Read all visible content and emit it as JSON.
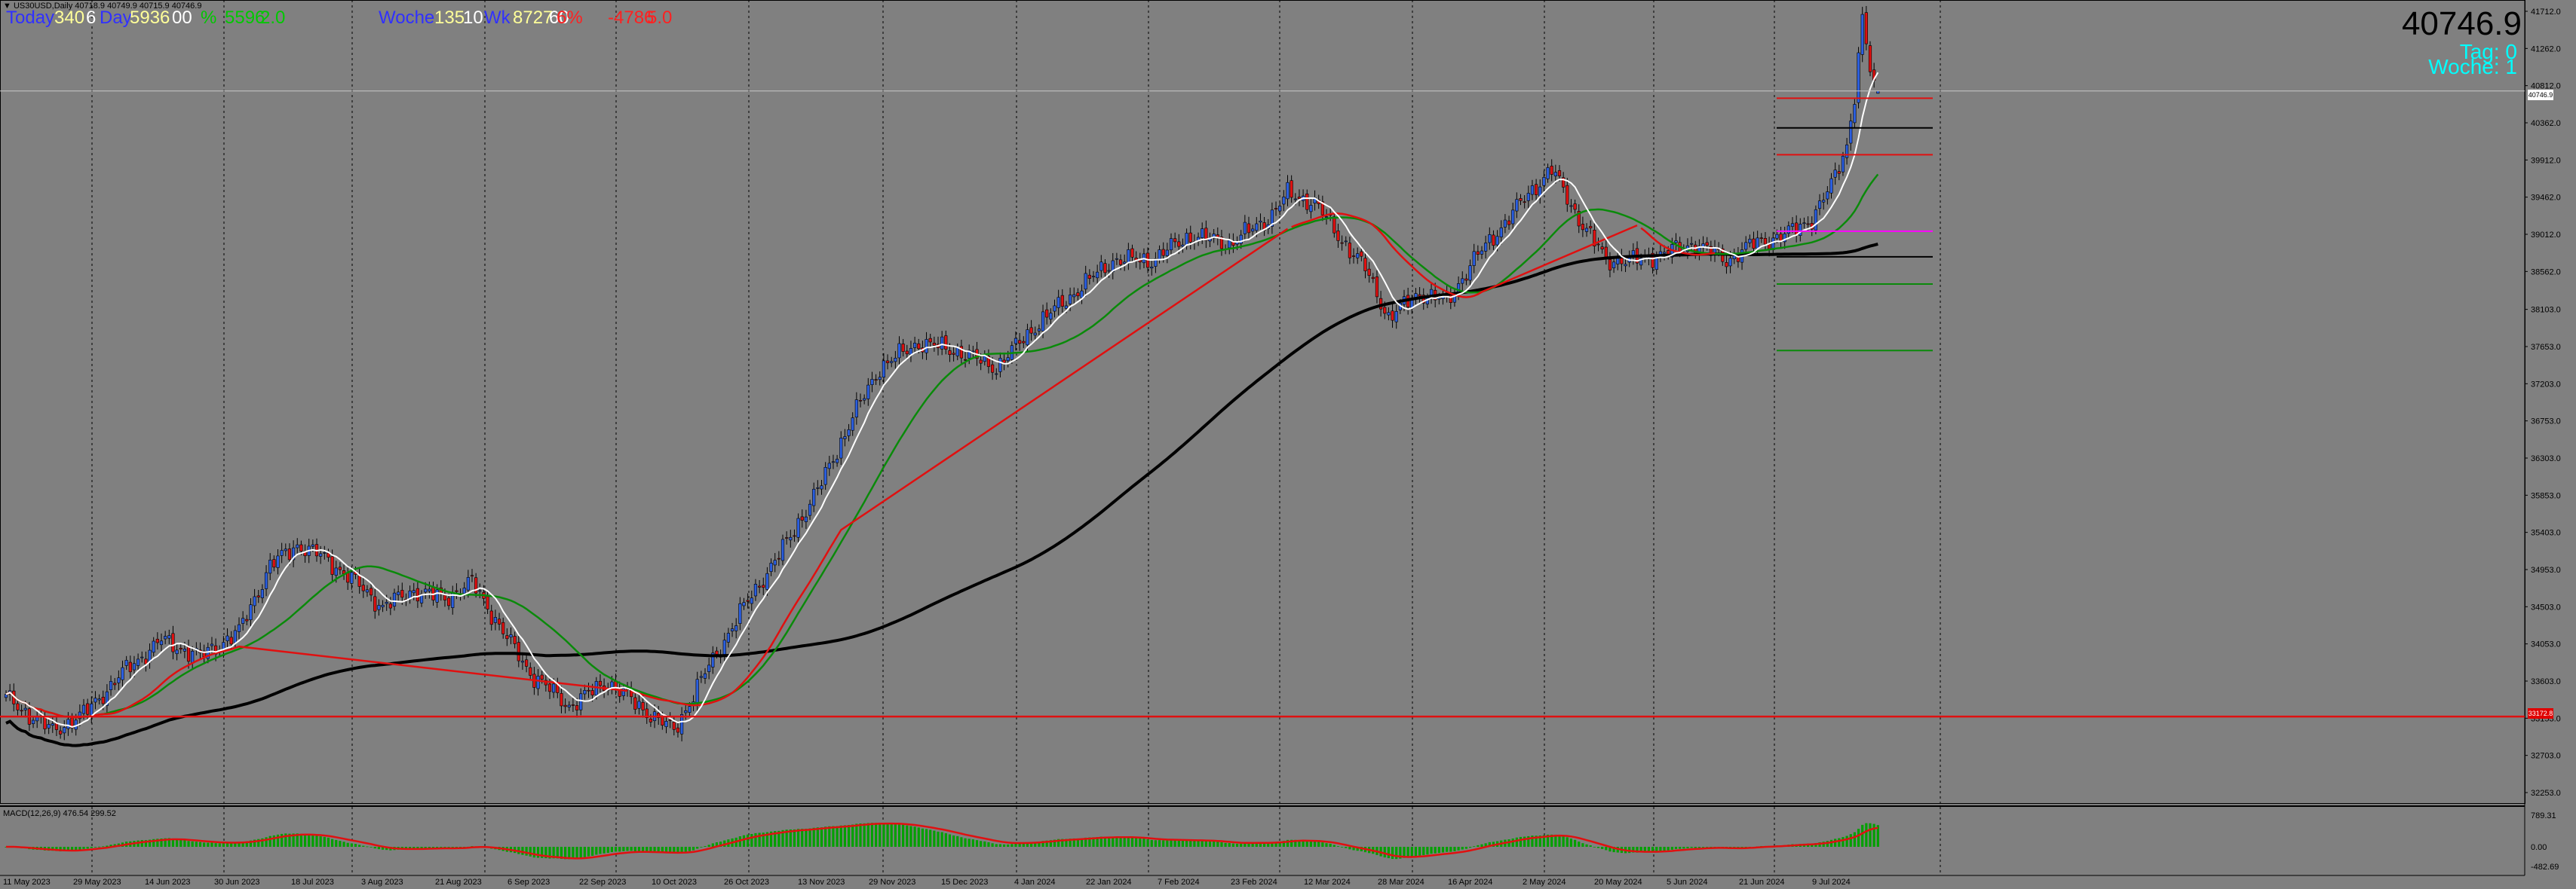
{
  "header": {
    "symbol_line": "▼ US30USD,Daily  40718.9 40749.9 40715.9 40746.9",
    "today_label": "Today",
    "today_value1": "340",
    "today_value2": "6",
    "day_label": "Day",
    "day_value": "5936",
    "day_value2": "00",
    "pct_green": "%",
    "value_green": "5596",
    "value_green2": "2.0",
    "woche_label": "Woche",
    "woche_value1": "135",
    "woche_value2": "10",
    "wk_label": "Wk",
    "wk_value": "8727",
    "wk_value2": "60",
    "pct_red": "6%",
    "value_red": "-4786",
    "value_red2": "5.0"
  },
  "info": {
    "current_price": "40746.9",
    "tag": "Tag:  0",
    "woche": "Woche:  1"
  },
  "current_price_box": "40746.9",
  "red_level_box": "33172.8",
  "macd_label": "MACD(12,26,9) 476.54 299.52",
  "colors": {
    "background": "#808080",
    "bull": "#2a5ee0",
    "bear": "#e01010",
    "ma_white": "#ffffff",
    "ma_green": "#0a8a0a",
    "ma_red": "#e01010",
    "ma_black": "#000000",
    "macd_hist": "#00a000",
    "macd_signal": "#e01010"
  },
  "price_axis": {
    "min": 32253,
    "max": 41712,
    "ticks": [
      "41712.0",
      "41262.0",
      "40812.0",
      "40362.0",
      "39912.0",
      "39462.0",
      "39012.0",
      "38562.0",
      "38103.0",
      "37653.0",
      "37203.0",
      "36753.0",
      "36303.0",
      "35853.0",
      "35403.0",
      "34953.0",
      "34503.0",
      "34053.0",
      "33603.0",
      "33153.0",
      "32703.0",
      "32253.0"
    ]
  },
  "macd_axis": {
    "ticks": [
      "789.31",
      "0.00",
      "-482.69"
    ]
  },
  "time_axis": {
    "labels": [
      "11 May 2023",
      "29 May 2023",
      "14 Jun 2023",
      "30 Jun 2023",
      "18 Jul 2023",
      "3 Aug 2023",
      "21 Aug 2023",
      "6 Sep 2023",
      "22 Sep 2023",
      "10 Oct 2023",
      "26 Oct 2023",
      "13 Nov 2023",
      "29 Nov 2023",
      "15 Dec 2023",
      "4 Jan 2024",
      "22 Jan 2024",
      "7 Feb 2024",
      "23 Feb 2024",
      "12 Mar 2024",
      "28 Mar 2024",
      "16 Apr 2024",
      "2 May 2024",
      "20 May 2024",
      "5 Jun 2024",
      "21 Jun 2024",
      "9 Jul 2024"
    ]
  },
  "chart_data": {
    "type": "candlestick",
    "symbol": "US30USD",
    "timeframe": "Daily",
    "last": {
      "open": 40718.9,
      "high": 40749.9,
      "low": 40715.9,
      "close": 40746.9
    },
    "close_path_anchors": [
      [
        0,
        33400
      ],
      [
        12,
        33000
      ],
      [
        20,
        33200
      ],
      [
        30,
        33700
      ],
      [
        40,
        34100
      ],
      [
        50,
        33900
      ],
      [
        60,
        34200
      ],
      [
        68,
        35000
      ],
      [
        75,
        35250
      ],
      [
        82,
        35100
      ],
      [
        90,
        34800
      ],
      [
        97,
        34500
      ],
      [
        105,
        34700
      ],
      [
        113,
        34600
      ],
      [
        120,
        34800
      ],
      [
        128,
        34200
      ],
      [
        135,
        33700
      ],
      [
        145,
        33300
      ],
      [
        155,
        33600
      ],
      [
        163,
        33300
      ],
      [
        172,
        33000
      ],
      [
        180,
        33700
      ],
      [
        190,
        34500
      ],
      [
        200,
        35200
      ],
      [
        210,
        36000
      ],
      [
        218,
        36800
      ],
      [
        225,
        37400
      ],
      [
        235,
        37700
      ],
      [
        245,
        37600
      ],
      [
        255,
        37400
      ],
      [
        265,
        37900
      ],
      [
        275,
        38300
      ],
      [
        285,
        38700
      ],
      [
        295,
        38700
      ],
      [
        305,
        39000
      ],
      [
        315,
        38900
      ],
      [
        325,
        39200
      ],
      [
        330,
        39500
      ],
      [
        337,
        39400
      ],
      [
        343,
        39000
      ],
      [
        350,
        38600
      ],
      [
        356,
        38000
      ],
      [
        364,
        38300
      ],
      [
        371,
        38200
      ],
      [
        378,
        38700
      ],
      [
        385,
        39100
      ],
      [
        392,
        39500
      ],
      [
        398,
        39800
      ],
      [
        405,
        39200
      ],
      [
        412,
        38700
      ],
      [
        420,
        38700
      ],
      [
        428,
        38800
      ],
      [
        435,
        38900
      ],
      [
        443,
        38700
      ],
      [
        450,
        38900
      ],
      [
        458,
        39000
      ],
      [
        465,
        39200
      ],
      [
        470,
        39600
      ],
      [
        474,
        40100
      ],
      [
        476,
        40700
      ],
      [
        478,
        41600
      ],
      [
        480,
        41000
      ],
      [
        482,
        40746.9
      ]
    ],
    "moving_averages": [
      {
        "color": "white",
        "period_hint": "short"
      },
      {
        "color": "green",
        "period_hint": "medium"
      },
      {
        "color": "red",
        "period_hint": "overlay"
      },
      {
        "color": "black",
        "period_hint": "long"
      }
    ],
    "horizontal_levels": [
      {
        "price": 40660,
        "color": "#e01010",
        "segment": "right"
      },
      {
        "price": 40300,
        "color": "#000000",
        "segment": "right"
      },
      {
        "price": 39975,
        "color": "#e01010",
        "segment": "right"
      },
      {
        "price": 39050,
        "color": "#ff00ff",
        "segment": "right"
      },
      {
        "price": 38740,
        "color": "#000000",
        "segment": "right"
      },
      {
        "price": 38410,
        "color": "#0a8a0a",
        "segment": "right"
      },
      {
        "price": 37605,
        "color": "#0a8a0a",
        "segment": "right"
      },
      {
        "price": 40746.9,
        "color": "#c8c8c8",
        "segment": "full"
      },
      {
        "price": 33172.8,
        "color": "#e01010",
        "segment": "full"
      }
    ],
    "macd": {
      "fast": 12,
      "slow": 26,
      "signal": 9,
      "main": 476.54,
      "signal_value": 299.52
    }
  }
}
